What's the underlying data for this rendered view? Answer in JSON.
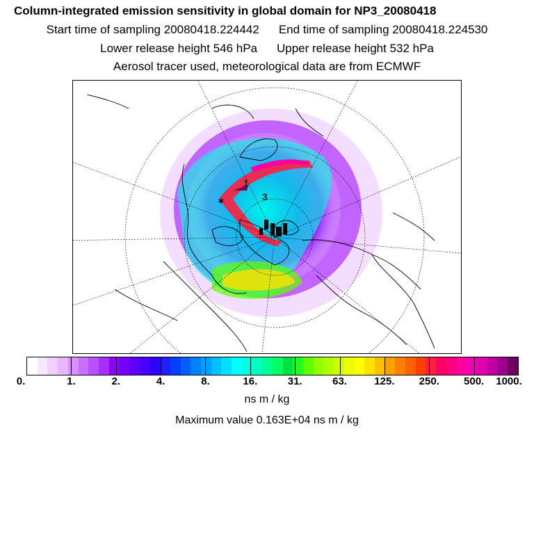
{
  "title": "Column-integrated emission sensitivity in global domain for NP3_20080418",
  "sampling": {
    "start": "Start time of sampling 20080418.224442",
    "end": "End time of sampling 20080418.224530"
  },
  "release": {
    "lower": "Lower release height  546 hPa",
    "upper": "Upper release height  532 hPa"
  },
  "tracer_note": "Aerosol tracer used, meteorological data are from ECMWF",
  "map": {
    "projection": "polar stereographic",
    "markers": [
      "1",
      "3"
    ]
  },
  "colorbar": {
    "labels": [
      "0.",
      "1.",
      "2.",
      "4.",
      "8.",
      "16.",
      "31.",
      "63.",
      "125.",
      "250.",
      "500.",
      "1000."
    ],
    "units": "ns m / kg",
    "colors": [
      "#ffffff",
      "#f8e8ff",
      "#f0d0ff",
      "#e8b8ff",
      "#d890ff",
      "#c870ff",
      "#b850ff",
      "#a830ff",
      "#9000ff",
      "#7800ff",
      "#6000ff",
      "#4800ff",
      "#3000ff",
      "#2020ff",
      "#0040ff",
      "#0060ff",
      "#0080ff",
      "#00a0ff",
      "#00c0ff",
      "#00e0ff",
      "#00ffff",
      "#00ffe0",
      "#00ffc0",
      "#00ff90",
      "#00ff60",
      "#00e040",
      "#20ff20",
      "#60ff00",
      "#90ff00",
      "#b0ff00",
      "#d0ff00",
      "#f0ff00",
      "#ffff00",
      "#ffe000",
      "#ffc000",
      "#ffa000",
      "#ff8000",
      "#ff6000",
      "#ff4000",
      "#ff2040",
      "#ff0060",
      "#ff0080",
      "#ff00a0",
      "#f000b0",
      "#e000b0",
      "#c000a0",
      "#a00090",
      "#700060"
    ]
  },
  "maximum": "Maximum value  0.163E+04 ns m / kg"
}
